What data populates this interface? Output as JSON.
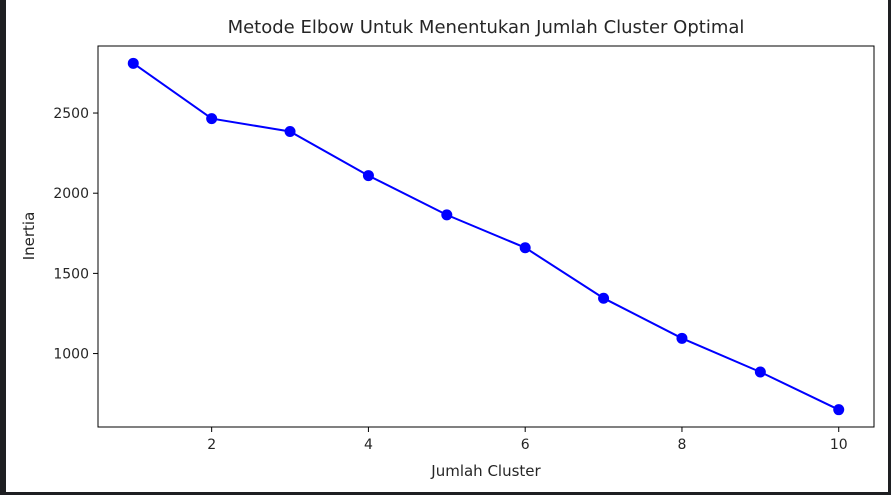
{
  "chart_data": {
    "type": "line",
    "title": "Metode Elbow Untuk Menentukan Jumlah Cluster Optimal",
    "xlabel": "Jumlah Cluster",
    "ylabel": "Inertia",
    "x": [
      1,
      2,
      3,
      4,
      5,
      6,
      7,
      8,
      9,
      10
    ],
    "series": [
      {
        "values": [
          2810,
          2465,
          2385,
          2110,
          1865,
          1660,
          1345,
          1095,
          885,
          650
        ],
        "color": "#0000ff",
        "marker": "circle"
      }
    ],
    "xticks": [
      2,
      4,
      6,
      8,
      10
    ],
    "yticks": [
      1000,
      1500,
      2000,
      2500
    ],
    "xlim": [
      0.55,
      10.45
    ],
    "ylim": [
      542,
      2918
    ],
    "grid": false,
    "legend": "none"
  }
}
